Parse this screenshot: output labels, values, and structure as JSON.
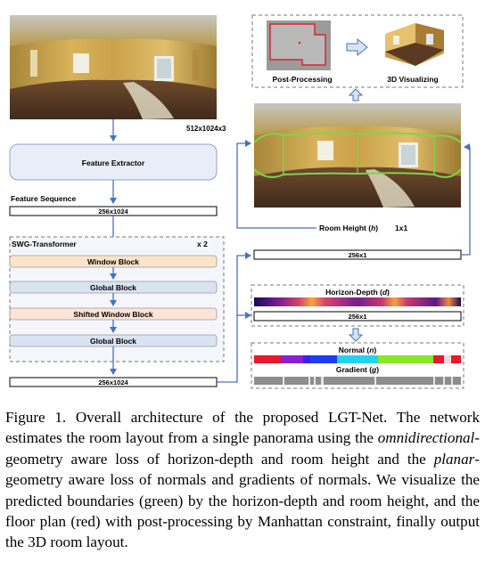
{
  "figure": {
    "input_dims": "512x1024x3",
    "feature_extractor": "Feature Extractor",
    "feature_sequence_label": "Feature Sequence",
    "feature_sequence_dims": "256x1024",
    "swg_title": "SWG-Transformer",
    "swg_multiplier": "x 2",
    "blocks": [
      "Window Block",
      "Global Block",
      "Shifted Window Block",
      "Global Block"
    ],
    "output_dims": "256x1024",
    "post_processing": "Post-Processing",
    "visualizing": "3D Visualizing",
    "room_height_text": "Room Height (",
    "room_height_var": "h",
    "room_height_close": ")",
    "room_height_dims": "1x1",
    "room_height_seq": "256x1",
    "horizon_depth_text": "Horizon-Depth (",
    "horizon_depth_var": "d",
    "horizon_depth_close": ")",
    "horizon_depth_dims": "256x1",
    "normal_text": "Normal (",
    "normal_var": "n",
    "normal_close": ")",
    "gradient_text": "Gradient (",
    "gradient_var": "g",
    "gradient_close": ")",
    "colors": {
      "arrow": "#4472c4",
      "extractor_fill": "#e9edf7",
      "window_block": "#fbe5c8",
      "global_block": "#dae3f3",
      "shifted_block": "#fce4d6",
      "boundary": "#7cd54a",
      "floorplan_red": "#d9262b"
    }
  },
  "caption": {
    "p1": "Figure 1. Overall architecture of the proposed LGT-Net. The network estimates the room layout from a single panorama using the ",
    "i1": "omnidirectional",
    "p2": "-geometry aware loss of horizon-depth and room height and the ",
    "i2": "planar",
    "p3": "-geometry aware loss of normals and gradients of normals. We visualize the predicted boundaries (green) by the horizon-depth and room height, and the floor plan (red) with post-processing by Manhattan constraint, finally output the 3D room layout."
  }
}
